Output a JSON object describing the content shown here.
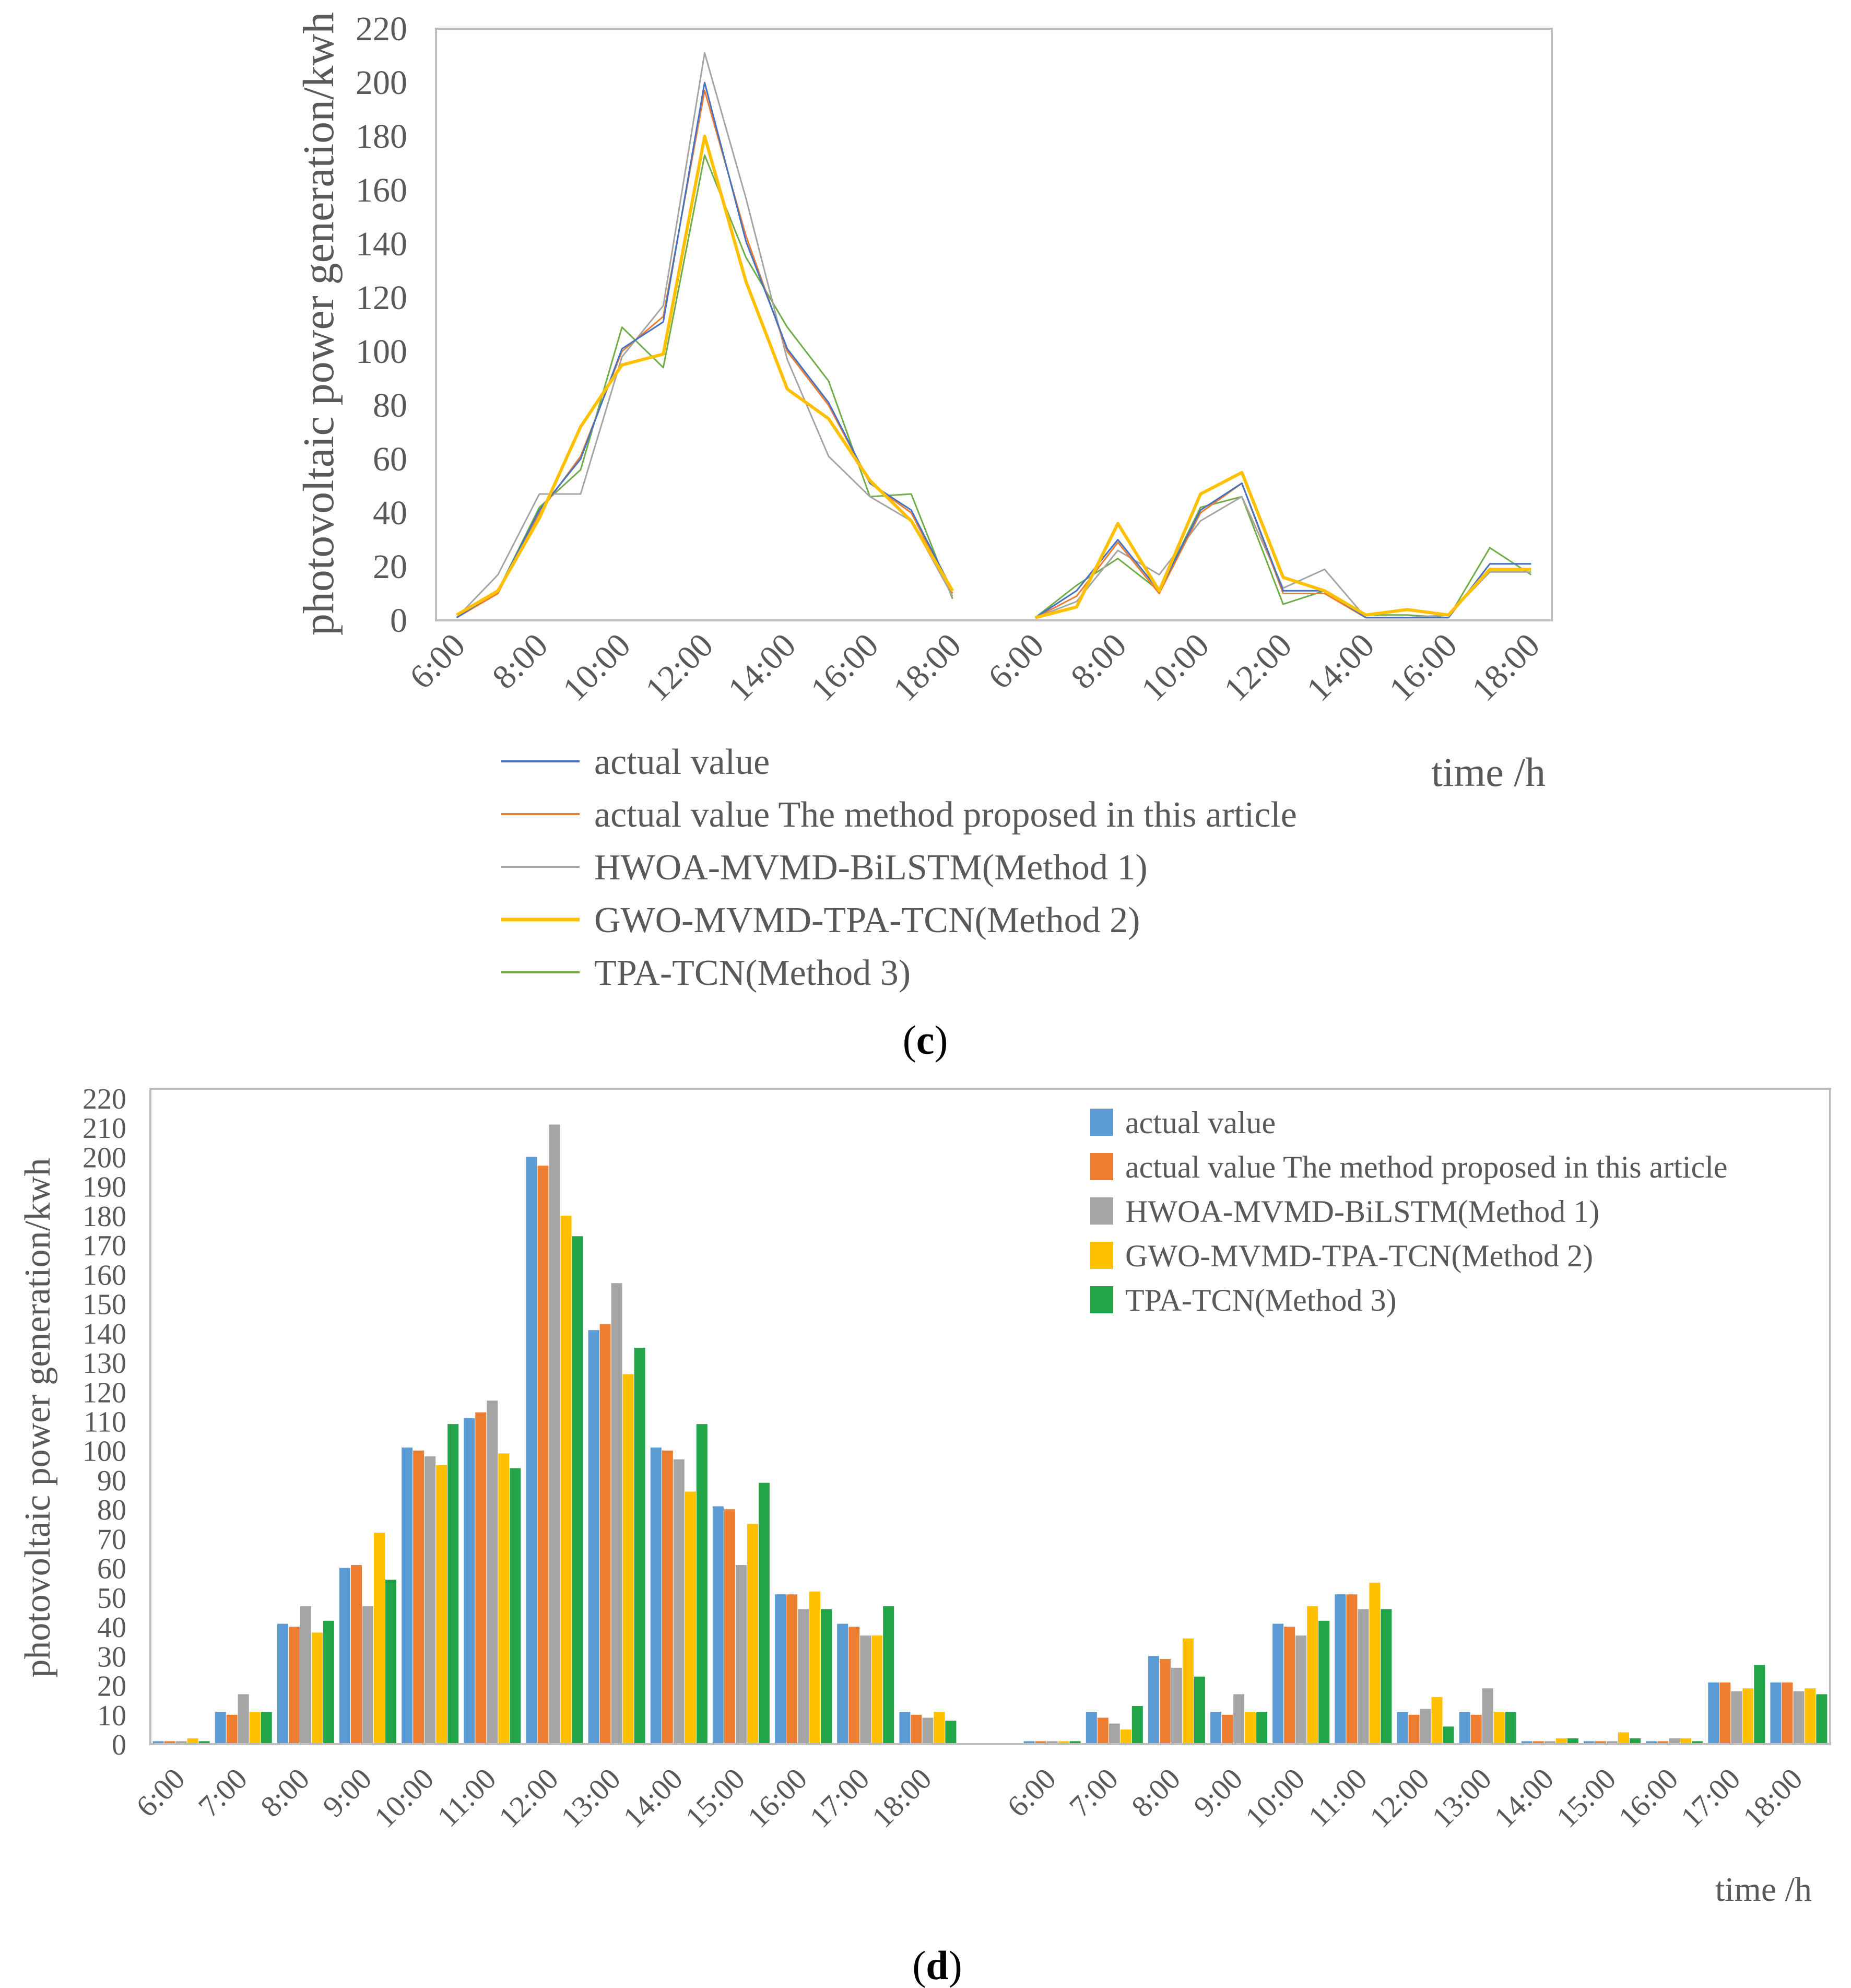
{
  "figure": {
    "caption_c_letter": "c",
    "caption_d_letter": "d",
    "caption_open": "(",
    "caption_close": ")"
  },
  "colors": {
    "actual": "#4472C4",
    "proposed": "#ED7D31",
    "method1": "#A5A5A5",
    "method2": "#FFC000",
    "method3": "#70AD47",
    "bar_actual": "#5B9BD5",
    "bar_method3": "#22A548",
    "axis": "#BFBFBF",
    "text": "#595959"
  },
  "chart_data": [
    {
      "id": "c",
      "type": "line",
      "title": "",
      "xlabel": "time /h",
      "ylabel": "photovoltaic power generation/kwh",
      "ylim": [
        0,
        220
      ],
      "yticks": [
        0,
        20,
        40,
        60,
        80,
        100,
        120,
        140,
        160,
        180,
        200,
        220
      ],
      "grid": false,
      "legend_position": "bottom",
      "categories": [
        "6:00",
        "7:00",
        "8:00",
        "9:00",
        "10:00",
        "11:00",
        "12:00",
        "13:00",
        "14:00",
        "15:00",
        "16:00",
        "17:00",
        "18:00",
        "",
        "6:00",
        "7:00",
        "8:00",
        "9:00",
        "10:00",
        "11:00",
        "12:00",
        "13:00",
        "14:00",
        "15:00",
        "16:00",
        "17:00",
        "18:00"
      ],
      "tick_labels": [
        "6:00",
        "8:00",
        "10:00",
        "12:00",
        "14:00",
        "16:00",
        "18:00",
        "6:00",
        "8:00",
        "10:00",
        "12:00",
        "14:00",
        "16:00",
        "18:00"
      ],
      "series": [
        {
          "name": "actual value",
          "values": [
            1,
            11,
            41,
            60,
            101,
            111,
            200,
            141,
            101,
            81,
            51,
            41,
            11,
            null,
            1,
            11,
            30,
            11,
            41,
            51,
            11,
            11,
            1,
            1,
            1,
            21,
            21
          ]
        },
        {
          "name": "actual value The method proposed in this article",
          "values": [
            1,
            10,
            40,
            61,
            100,
            113,
            197,
            143,
            100,
            80,
            51,
            40,
            10,
            null,
            1,
            9,
            29,
            10,
            40,
            51,
            10,
            10,
            1,
            1,
            1,
            21,
            21
          ]
        },
        {
          "name": "HWOA-MVMD-BiLSTM(Method 1)",
          "values": [
            1,
            17,
            47,
            47,
            98,
            117,
            211,
            157,
            97,
            61,
            46,
            37,
            9,
            null,
            1,
            7,
            26,
            17,
            37,
            46,
            12,
            19,
            1,
            1,
            2,
            18,
            18
          ]
        },
        {
          "name": "GWO-MVMD-TPA-TCN(Method 2)",
          "values": [
            2,
            11,
            38,
            72,
            95,
            99,
            180,
            126,
            86,
            75,
            52,
            37,
            11,
            null,
            1,
            5,
            36,
            11,
            47,
            55,
            16,
            11,
            2,
            4,
            2,
            19,
            19
          ]
        },
        {
          "name": "TPA-TCN(Method 3)",
          "values": [
            1,
            11,
            42,
            56,
            109,
            94,
            173,
            135,
            109,
            89,
            46,
            47,
            8,
            null,
            1,
            13,
            23,
            11,
            42,
            46,
            6,
            11,
            2,
            2,
            1,
            27,
            17
          ]
        }
      ]
    },
    {
      "id": "d",
      "type": "bar",
      "title": "",
      "xlabel": "time /h",
      "ylabel": "photovoltaic power generation/kwh",
      "ylim": [
        0,
        220
      ],
      "yticks": [
        0,
        10,
        20,
        30,
        40,
        50,
        60,
        70,
        80,
        90,
        100,
        110,
        120,
        130,
        140,
        150,
        160,
        170,
        180,
        190,
        200,
        210,
        220
      ],
      "grid": false,
      "legend_position": "top-right",
      "categories": [
        "6:00",
        "7:00",
        "8:00",
        "9:00",
        "10:00",
        "11:00",
        "12:00",
        "13:00",
        "14:00",
        "15:00",
        "16:00",
        "17:00",
        "18:00",
        "",
        "6:00",
        "7:00",
        "8:00",
        "9:00",
        "10:00",
        "11:00",
        "12:00",
        "13:00",
        "14:00",
        "15:00",
        "16:00",
        "17:00",
        "18:00"
      ],
      "series": [
        {
          "name": "actual value",
          "values": [
            1,
            11,
            41,
            60,
            101,
            111,
            200,
            141,
            101,
            81,
            51,
            41,
            11,
            null,
            1,
            11,
            30,
            11,
            41,
            51,
            11,
            11,
            1,
            1,
            1,
            21,
            21
          ]
        },
        {
          "name": "actual value The method proposed in this article",
          "values": [
            1,
            10,
            40,
            61,
            100,
            113,
            197,
            143,
            100,
            80,
            51,
            40,
            10,
            null,
            1,
            9,
            29,
            10,
            40,
            51,
            10,
            10,
            1,
            1,
            1,
            21,
            21
          ]
        },
        {
          "name": "HWOA-MVMD-BiLSTM(Method 1)",
          "values": [
            1,
            17,
            47,
            47,
            98,
            117,
            211,
            157,
            97,
            61,
            46,
            37,
            9,
            null,
            1,
            7,
            26,
            17,
            37,
            46,
            12,
            19,
            1,
            1,
            2,
            18,
            18
          ]
        },
        {
          "name": "GWO-MVMD-TPA-TCN(Method 2)",
          "values": [
            2,
            11,
            38,
            72,
            95,
            99,
            180,
            126,
            86,
            75,
            52,
            37,
            11,
            null,
            1,
            5,
            36,
            11,
            47,
            55,
            16,
            11,
            2,
            4,
            2,
            19,
            19
          ]
        },
        {
          "name": "TPA-TCN(Method 3)",
          "values": [
            1,
            11,
            42,
            56,
            109,
            94,
            173,
            135,
            109,
            89,
            46,
            47,
            8,
            null,
            1,
            13,
            23,
            11,
            42,
            46,
            6,
            11,
            2,
            2,
            1,
            27,
            17
          ]
        }
      ]
    }
  ]
}
